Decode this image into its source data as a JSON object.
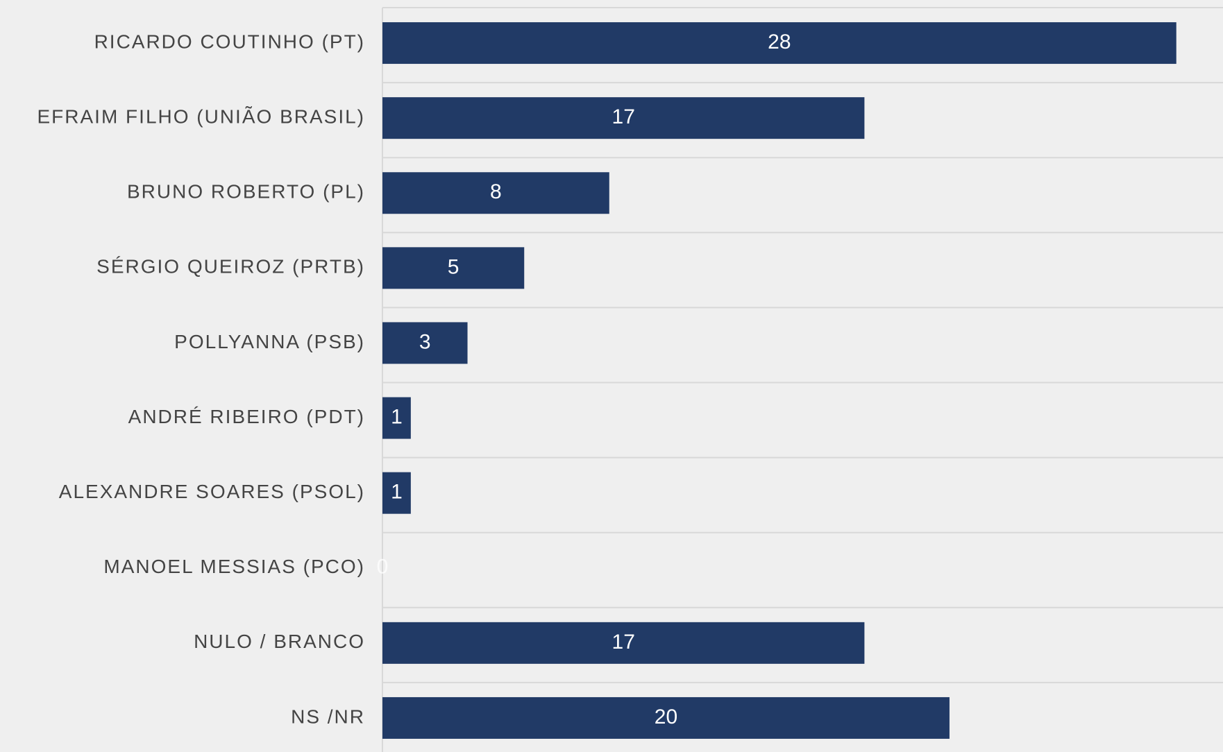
{
  "chart_data": {
    "type": "bar",
    "orientation": "horizontal",
    "categories": [
      "RICARDO COUTINHO (PT)",
      "EFRAIM FILHO (UNIÃO BRASIL)",
      "BRUNO ROBERTO (PL)",
      "SÉRGIO QUEIROZ (PRTB)",
      "POLLYANNA (PSB)",
      "ANDRÉ RIBEIRO (PDT)",
      "ALEXANDRE SOARES (PSOL)",
      "MANOEL MESSIAS (PCO)",
      "NULO / BRANCO",
      "NS /NR"
    ],
    "values": [
      28,
      17,
      8,
      5,
      3,
      1,
      1,
      0,
      17,
      20
    ],
    "color": "#213a66",
    "xlim": [
      0,
      29.5
    ],
    "grid": true
  }
}
